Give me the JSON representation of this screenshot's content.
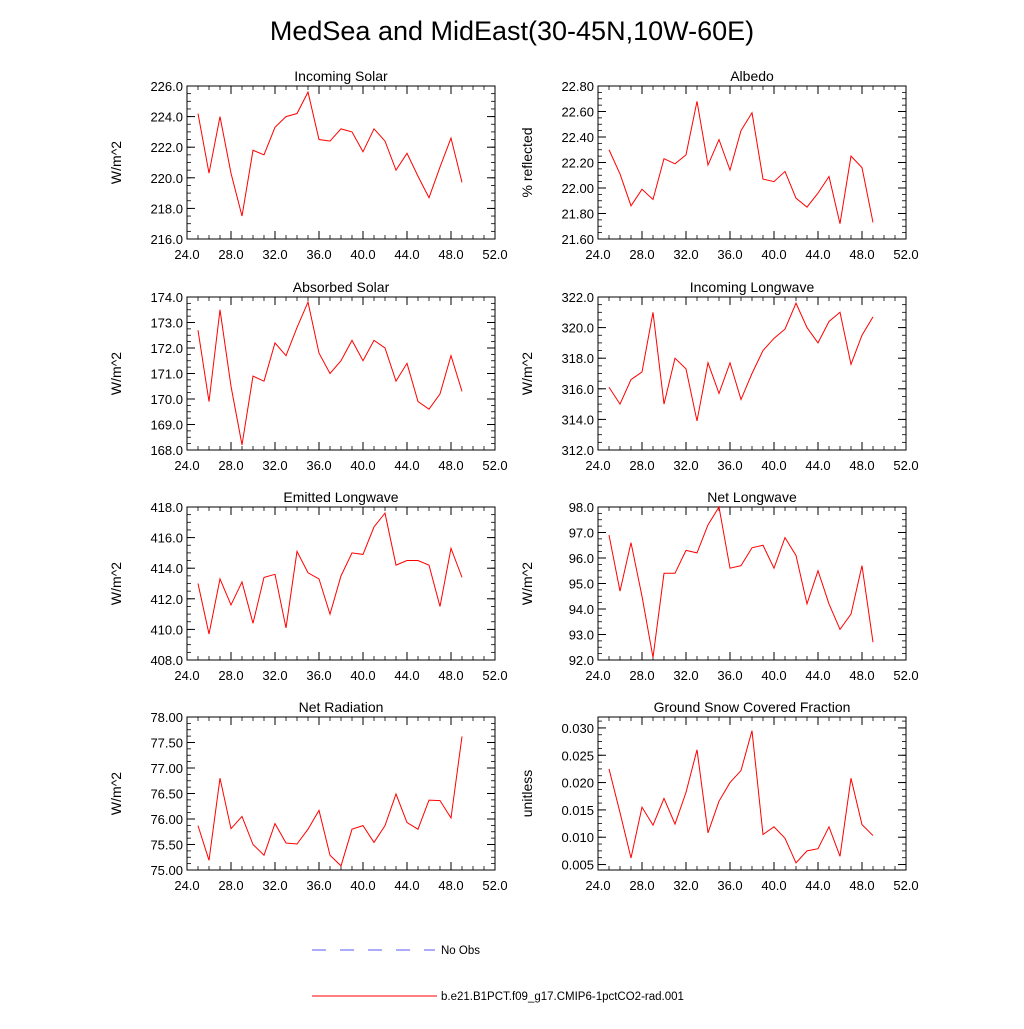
{
  "figure_title": "MedSea and MidEast(30-45N,10W-60E)",
  "colors": {
    "model": "#ff0000",
    "obs": "#5a5aff"
  },
  "legend": {
    "obs_label": "No Obs",
    "model_label": "b.e21.B1PCT.f09_g17.CMIP6-1pctCO2-rad.001"
  },
  "chart_data": [
    {
      "type": "line",
      "title": "Incoming Solar",
      "ylabel": "W/m^2",
      "xlim": [
        24,
        52
      ],
      "ylim": [
        216,
        226
      ],
      "xticks": [
        24,
        28,
        32,
        36,
        40,
        44,
        48,
        52
      ],
      "xticks_fmt": 1,
      "xticks_minor": 1,
      "yticks": [
        216,
        218,
        220,
        222,
        224,
        226
      ],
      "yticks_fmt": 1,
      "yticks_minor": 0.5,
      "x": [
        25,
        26,
        27,
        28,
        29,
        30,
        31,
        32,
        33,
        34,
        35,
        36,
        37,
        38,
        39,
        40,
        41,
        42,
        43,
        44,
        45,
        46,
        47,
        48,
        49
      ],
      "series": [
        {
          "values": [
            224.2,
            220.3,
            224.0,
            220.3,
            217.5,
            221.8,
            221.5,
            223.3,
            224.0,
            224.2,
            225.6,
            222.5,
            222.4,
            223.2,
            223.0,
            221.7,
            223.2,
            222.4,
            220.5,
            221.6,
            220.1,
            218.7,
            220.7,
            222.6,
            219.7
          ]
        }
      ]
    },
    {
      "type": "line",
      "title": "Albedo",
      "ylabel": "% reflected",
      "xlim": [
        24,
        52
      ],
      "ylim": [
        21.6,
        22.8
      ],
      "xticks": [
        24,
        28,
        32,
        36,
        40,
        44,
        48,
        52
      ],
      "xticks_fmt": 1,
      "xticks_minor": 1,
      "yticks": [
        21.6,
        21.8,
        22.0,
        22.2,
        22.4,
        22.6,
        22.8
      ],
      "yticks_fmt": 2,
      "yticks_minor": 0.05,
      "x": [
        25,
        26,
        27,
        28,
        29,
        30,
        31,
        32,
        33,
        34,
        35,
        36,
        37,
        38,
        39,
        40,
        41,
        42,
        43,
        44,
        45,
        46,
        47,
        48,
        49
      ],
      "series": [
        {
          "values": [
            22.3,
            22.11,
            21.86,
            21.99,
            21.91,
            22.23,
            22.19,
            22.26,
            22.68,
            22.18,
            22.38,
            22.14,
            22.45,
            22.59,
            22.07,
            22.05,
            22.13,
            21.92,
            21.85,
            21.96,
            22.09,
            21.72,
            22.25,
            22.16,
            21.73
          ]
        }
      ]
    },
    {
      "type": "line",
      "title": "Absorbed Solar",
      "ylabel": "W/m^2",
      "xlim": [
        24,
        52
      ],
      "ylim": [
        168,
        174
      ],
      "xticks": [
        24,
        28,
        32,
        36,
        40,
        44,
        48,
        52
      ],
      "xticks_fmt": 1,
      "xticks_minor": 1,
      "yticks": [
        168,
        169,
        170,
        171,
        172,
        173,
        174
      ],
      "yticks_fmt": 1,
      "yticks_minor": 0.25,
      "x": [
        25,
        26,
        27,
        28,
        29,
        30,
        31,
        32,
        33,
        34,
        35,
        36,
        37,
        38,
        39,
        40,
        41,
        42,
        43,
        44,
        45,
        46,
        47,
        48,
        49
      ],
      "series": [
        {
          "values": [
            172.7,
            169.9,
            173.5,
            170.5,
            168.2,
            170.9,
            170.7,
            172.2,
            171.7,
            172.8,
            173.8,
            171.8,
            171.0,
            171.5,
            172.3,
            171.5,
            172.3,
            172.0,
            170.7,
            171.4,
            169.9,
            169.6,
            170.2,
            171.7,
            170.3
          ]
        }
      ]
    },
    {
      "type": "line",
      "title": "Incoming Longwave",
      "ylabel": "W/m^2",
      "xlim": [
        24,
        52
      ],
      "ylim": [
        312,
        322
      ],
      "xticks": [
        24,
        28,
        32,
        36,
        40,
        44,
        48,
        52
      ],
      "xticks_fmt": 1,
      "xticks_minor": 1,
      "yticks": [
        312,
        314,
        316,
        318,
        320,
        322
      ],
      "yticks_fmt": 1,
      "yticks_minor": 0.5,
      "x": [
        25,
        26,
        27,
        28,
        29,
        30,
        31,
        32,
        33,
        34,
        35,
        36,
        37,
        38,
        39,
        40,
        41,
        42,
        43,
        44,
        45,
        46,
        47,
        48,
        49
      ],
      "series": [
        {
          "values": [
            316.1,
            315.0,
            316.6,
            317.1,
            321.0,
            315.0,
            318.0,
            317.3,
            313.9,
            317.7,
            315.7,
            317.7,
            315.3,
            317.0,
            318.5,
            319.3,
            319.9,
            321.6,
            320.0,
            319.0,
            320.4,
            321.0,
            317.6,
            319.5,
            320.7
          ]
        }
      ]
    },
    {
      "type": "line",
      "title": "Emitted Longwave",
      "ylabel": "W/m^2",
      "xlim": [
        24,
        52
      ],
      "ylim": [
        408,
        418
      ],
      "xticks": [
        24,
        28,
        32,
        36,
        40,
        44,
        48,
        52
      ],
      "xticks_fmt": 1,
      "xticks_minor": 1,
      "yticks": [
        408,
        410,
        412,
        414,
        416,
        418
      ],
      "yticks_fmt": 1,
      "yticks_minor": 0.5,
      "x": [
        25,
        26,
        27,
        28,
        29,
        30,
        31,
        32,
        33,
        34,
        35,
        36,
        37,
        38,
        39,
        40,
        41,
        42,
        43,
        44,
        45,
        46,
        47,
        48,
        49
      ],
      "series": [
        {
          "values": [
            413.0,
            409.7,
            413.3,
            411.6,
            413.1,
            410.4,
            413.4,
            413.6,
            410.1,
            415.1,
            413.7,
            413.3,
            411.0,
            413.5,
            415.0,
            414.9,
            416.7,
            417.6,
            414.2,
            414.5,
            414.5,
            414.2,
            411.5,
            415.3,
            413.4
          ]
        }
      ]
    },
    {
      "type": "line",
      "title": "Net Longwave",
      "ylabel": "W/m^2",
      "xlim": [
        24,
        52
      ],
      "ylim": [
        92,
        98
      ],
      "xticks": [
        24,
        28,
        32,
        36,
        40,
        44,
        48,
        52
      ],
      "xticks_fmt": 1,
      "xticks_minor": 1,
      "yticks": [
        92,
        93,
        94,
        95,
        96,
        97,
        98
      ],
      "yticks_fmt": 1,
      "yticks_minor": 0.25,
      "x": [
        25,
        26,
        27,
        28,
        29,
        30,
        31,
        32,
        33,
        34,
        35,
        36,
        37,
        38,
        39,
        40,
        41,
        42,
        43,
        44,
        45,
        46,
        47,
        48,
        49
      ],
      "series": [
        {
          "values": [
            96.9,
            94.7,
            96.6,
            94.5,
            92.1,
            95.4,
            95.4,
            96.3,
            96.2,
            97.3,
            98.0,
            95.6,
            95.7,
            96.4,
            96.5,
            95.6,
            96.8,
            96.1,
            94.2,
            95.5,
            94.2,
            93.2,
            93.8,
            95.7,
            92.7
          ]
        }
      ]
    },
    {
      "type": "line",
      "title": "Net Radiation",
      "ylabel": "W/m^2",
      "xlim": [
        24,
        52
      ],
      "ylim": [
        75,
        78
      ],
      "xticks": [
        24,
        28,
        32,
        36,
        40,
        44,
        48,
        52
      ],
      "xticks_fmt": 1,
      "xticks_minor": 1,
      "yticks": [
        75,
        75.5,
        76,
        76.5,
        77,
        77.5,
        78
      ],
      "yticks_fmt": 2,
      "yticks_minor": 0.125,
      "x": [
        25,
        26,
        27,
        28,
        29,
        30,
        31,
        32,
        33,
        34,
        35,
        36,
        37,
        38,
        39,
        40,
        41,
        42,
        43,
        44,
        45,
        46,
        47,
        48,
        49
      ],
      "series": [
        {
          "values": [
            75.87,
            75.19,
            76.8,
            75.81,
            76.05,
            75.5,
            75.29,
            75.91,
            75.53,
            75.51,
            75.8,
            76.17,
            75.29,
            75.08,
            75.8,
            75.87,
            75.54,
            75.87,
            76.49,
            75.93,
            75.8,
            76.37,
            76.36,
            76.02,
            77.62
          ]
        }
      ]
    },
    {
      "type": "line",
      "title": "Ground Snow Covered Fraction",
      "ylabel": "unitless",
      "xlim": [
        24,
        52
      ],
      "ylim": [
        0.004,
        0.032
      ],
      "xticks": [
        24,
        28,
        32,
        36,
        40,
        44,
        48,
        52
      ],
      "xticks_fmt": 1,
      "xticks_minor": 1,
      "yticks": [
        0.005,
        0.01,
        0.015,
        0.02,
        0.025,
        0.03
      ],
      "yticks_fmt": 3,
      "yticks_minor": 0.00125,
      "x": [
        25,
        26,
        27,
        28,
        29,
        30,
        31,
        32,
        33,
        34,
        35,
        36,
        37,
        38,
        39,
        40,
        41,
        42,
        43,
        44,
        45,
        46,
        47,
        48,
        49
      ],
      "series": [
        {
          "values": [
            0.0225,
            0.0145,
            0.0062,
            0.0155,
            0.0122,
            0.0171,
            0.0124,
            0.0182,
            0.026,
            0.0108,
            0.0166,
            0.02,
            0.0222,
            0.0295,
            0.0105,
            0.0119,
            0.0098,
            0.0053,
            0.0075,
            0.0079,
            0.0119,
            0.0065,
            0.0208,
            0.0123,
            0.0103
          ]
        }
      ]
    }
  ]
}
